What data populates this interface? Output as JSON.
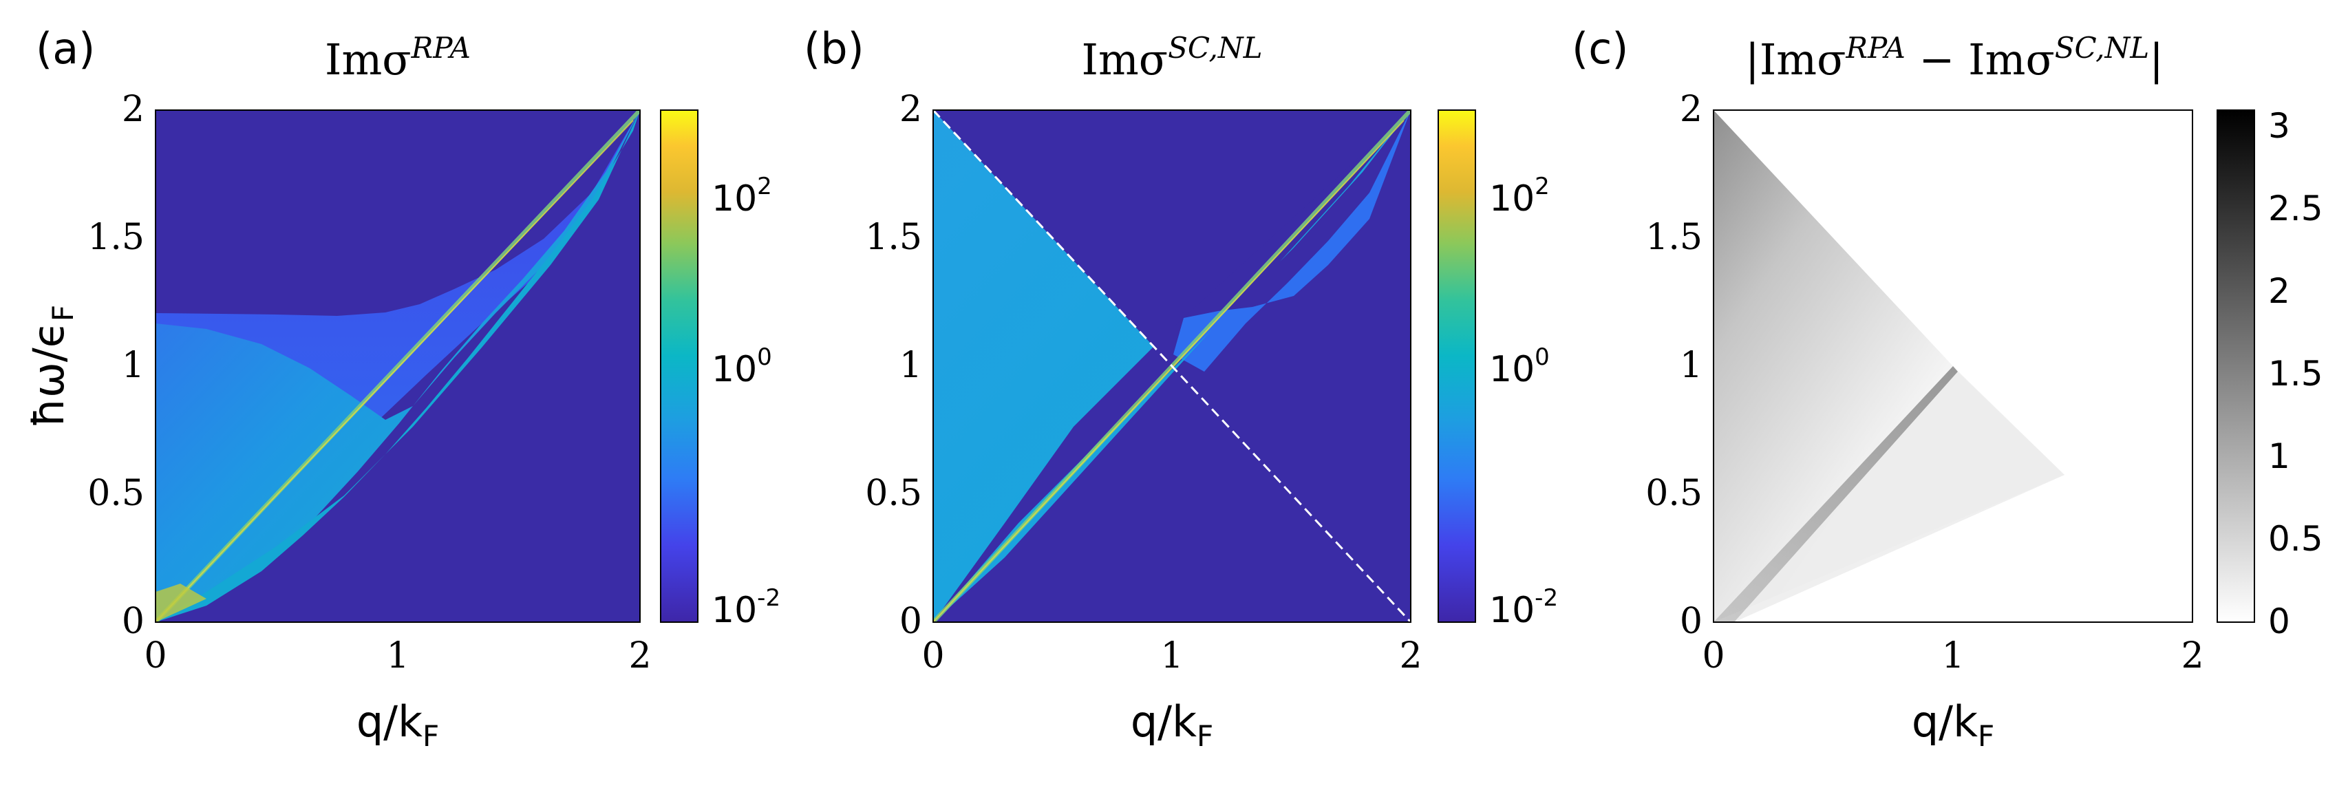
{
  "figure": {
    "panels": [
      {
        "tag": "(a)",
        "title_base": "Imσ",
        "title_sup": "RPA",
        "ylabel_main": "ħω/ϵ",
        "ylabel_sub": "F",
        "xlabel_main": "q/k",
        "xlabel_sub": "F"
      },
      {
        "tag": "(b)",
        "title_base": "Imσ",
        "title_sup": "SC,NL",
        "xlabel_main": "q/k",
        "xlabel_sub": "F"
      },
      {
        "tag": "(c)",
        "title_l": "|",
        "title_a": "Imσ",
        "title_a_sup": "RPA",
        "title_minus": " − ",
        "title_b": "Imσ",
        "title_b_sup": "SC,NL",
        "title_r": "|",
        "xlabel_main": "q/k",
        "xlabel_sub": "F"
      }
    ]
  },
  "chart_data": [
    {
      "type": "heatmap",
      "title": "Imσ^RPA",
      "xlabel": "q/k_F",
      "ylabel": "ħω/ϵ_F",
      "xlim": [
        0,
        2
      ],
      "ylim": [
        0,
        2
      ],
      "xticks": [
        "0",
        "1",
        "2"
      ],
      "yticks": [
        "0",
        "0.5",
        "1",
        "1.5",
        "2"
      ],
      "colorscale": "parula",
      "color_scale_type": "log",
      "clim": [
        0.01,
        1000
      ],
      "colorbar_ticks": [
        {
          "base": "10",
          "exp": "-2",
          "value": 0.01
        },
        {
          "base": "10",
          "exp": "0",
          "value": 1
        },
        {
          "base": "10",
          "exp": "2",
          "value": 100
        }
      ],
      "region_boundaries": {
        "intraband_edge": {
          "x": [
            0,
            2
          ],
          "y": [
            0,
            2
          ]
        },
        "upper_boundary": {
          "x": [
            0,
            0.25,
            0.5,
            0.75,
            1.0,
            1.25,
            1.5,
            1.75,
            2.0
          ],
          "y": [
            1.2,
            1.2,
            1.21,
            1.23,
            1.28,
            1.38,
            1.53,
            1.74,
            2.0
          ]
        },
        "lower_boundary": {
          "x": [
            0,
            0.5,
            1.0,
            1.5,
            2.0
          ],
          "y": [
            0,
            0.32,
            0.86,
            1.43,
            2.0
          ]
        }
      },
      "background_value": 0.01
    },
    {
      "type": "heatmap",
      "title": "Imσ^SC,NL",
      "xlabel": "q/k_F",
      "ylabel": "",
      "xlim": [
        0,
        2
      ],
      "ylim": [
        0,
        2
      ],
      "xticks": [
        "0",
        "1",
        "2"
      ],
      "yticks": [
        "0",
        "0.5",
        "1",
        "1.5",
        "2"
      ],
      "colorscale": "parula",
      "color_scale_type": "log",
      "clim": [
        0.01,
        1000
      ],
      "colorbar_ticks": [
        {
          "base": "10",
          "exp": "-2",
          "value": 0.01
        },
        {
          "base": "10",
          "exp": "0",
          "value": 1
        },
        {
          "base": "10",
          "exp": "2",
          "value": 100
        }
      ],
      "reference_line": {
        "x": [
          0,
          2
        ],
        "y": [
          2,
          0
        ],
        "style": "dashed",
        "color": "#ffffff"
      },
      "region_boundaries": {
        "triangle": {
          "x": [
            0,
            0,
            2
          ],
          "y": [
            0,
            2,
            0
          ]
        },
        "upper_boundary": {
          "x": [
            0.75,
            1.0,
            1.25,
            1.5,
            1.75,
            2.0
          ],
          "y": [
            1.23,
            1.28,
            1.38,
            1.53,
            1.74,
            2.0
          ]
        }
      },
      "background_value": 0.01
    },
    {
      "type": "heatmap",
      "title": "|Imσ^RPA − Imσ^SC,NL|",
      "xlabel": "q/k_F",
      "ylabel": "",
      "xlim": [
        0,
        2
      ],
      "ylim": [
        0,
        2
      ],
      "xticks": [
        "0",
        "1",
        "2"
      ],
      "yticks": [
        "0",
        "0.5",
        "1",
        "1.5",
        "2"
      ],
      "colorscale": "gray_reversed",
      "color_scale_type": "linear",
      "clim": [
        0,
        3.1
      ],
      "colorbar_ticks": [
        {
          "label": "0",
          "value": 0
        },
        {
          "label": "0.5",
          "value": 0.5
        },
        {
          "label": "1",
          "value": 1
        },
        {
          "label": "1.5",
          "value": 1.5
        },
        {
          "label": "2",
          "value": 2
        },
        {
          "label": "2.5",
          "value": 2.5
        },
        {
          "label": "3",
          "value": 3
        }
      ],
      "region_boundaries": {
        "triangle": {
          "x": [
            0,
            0,
            2
          ],
          "y": [
            0,
            2,
            0
          ]
        }
      },
      "peak_value_at_corner": 1.85
    }
  ]
}
